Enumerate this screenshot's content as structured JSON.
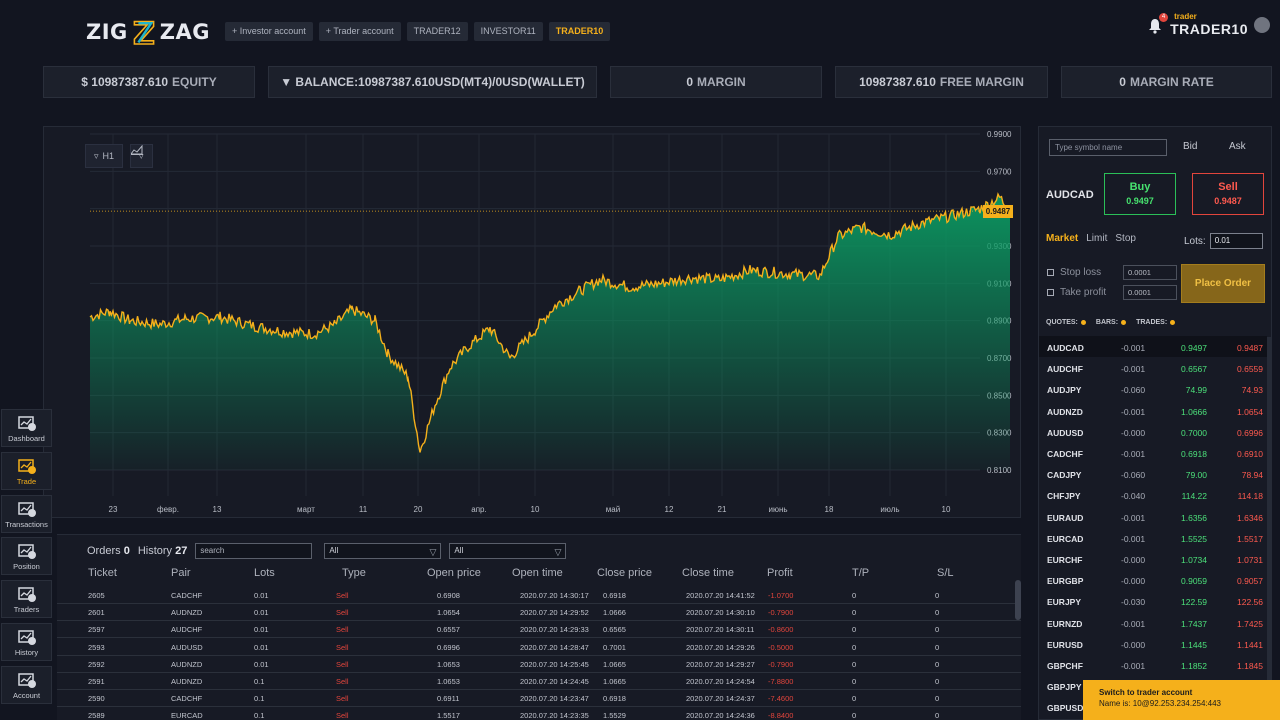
{
  "brand": {
    "left": "ZIG",
    "right": "ZAG"
  },
  "account_tabs": [
    {
      "label": "+ Investor account"
    },
    {
      "label": "+ Trader account"
    },
    {
      "label": "TRADER12"
    },
    {
      "label": "INVESTOR11"
    },
    {
      "label": "TRADER10",
      "active": true
    }
  ],
  "user": {
    "role": "trader",
    "name": "TRADER10",
    "notifications": "4"
  },
  "stats": {
    "equity_value": "$ 10987387.610",
    "equity_label": "EQUITY",
    "balance": "▼ BALANCE:10987387.610USD(MT4)/0USD(WALLET)",
    "margin_value": "0",
    "margin_label": "MARGIN",
    "free_value": "10987387.610",
    "free_label": "FREE MARGIN",
    "rate_value": "0",
    "rate_label": "MARGIN RATE"
  },
  "chart": {
    "timeframe": "H1",
    "current_price": "0.9487",
    "y_ticks": [
      "0.9900",
      "0.9700",
      "0.9500",
      "0.9300",
      "0.9100",
      "0.8900",
      "0.8700",
      "0.8500",
      "0.8300",
      "0.8100"
    ],
    "x_ticks": [
      "23",
      "февр.",
      "13",
      "март",
      "11",
      "20",
      "апр.",
      "10",
      "май",
      "12",
      "21",
      "июнь",
      "18",
      "июль",
      "10"
    ]
  },
  "history": {
    "orders_label": "Orders",
    "orders_count": "0",
    "history_label": "History",
    "history_count": "27",
    "search_placeholder": "search",
    "filter1": "All",
    "filter2": "All",
    "columns": [
      "Ticket",
      "Pair",
      "Lots",
      "Type",
      "Open price",
      "Open time",
      "Close price",
      "Close time",
      "Profit",
      "T/P",
      "S/L"
    ],
    "rows": [
      [
        "2605",
        "CADCHF",
        "0.01",
        "Sell",
        "0.6908",
        "2020.07.20 14:30:17",
        "0.6918",
        "2020.07.20 14:41:52",
        "-1.0700",
        "0",
        "0"
      ],
      [
        "2601",
        "AUDNZD",
        "0.01",
        "Sell",
        "1.0654",
        "2020.07.20 14:29:52",
        "1.0666",
        "2020.07.20 14:30:10",
        "-0.7900",
        "0",
        "0"
      ],
      [
        "2597",
        "AUDCHF",
        "0.01",
        "Sell",
        "0.6557",
        "2020.07.20 14:29:33",
        "0.6565",
        "2020.07.20 14:30:11",
        "-0.8600",
        "0",
        "0"
      ],
      [
        "2593",
        "AUDUSD",
        "0.01",
        "Sell",
        "0.6996",
        "2020.07.20 14:28:47",
        "0.7001",
        "2020.07.20 14:29:26",
        "-0.5000",
        "0",
        "0"
      ],
      [
        "2592",
        "AUDNZD",
        "0.01",
        "Sell",
        "1.0653",
        "2020.07.20 14:25:45",
        "1.0665",
        "2020.07.20 14:29:27",
        "-0.7900",
        "0",
        "0"
      ],
      [
        "2591",
        "AUDNZD",
        "0.1",
        "Sell",
        "1.0653",
        "2020.07.20 14:24:45",
        "1.0665",
        "2020.07.20 14:24:54",
        "-7.8800",
        "0",
        "0"
      ],
      [
        "2590",
        "CADCHF",
        "0.1",
        "Sell",
        "0.6911",
        "2020.07.20 14:23:47",
        "0.6918",
        "2020.07.20 14:24:37",
        "-7.4600",
        "0",
        "0"
      ],
      [
        "2589",
        "EURCAD",
        "0.1",
        "Sell",
        "1.5517",
        "2020.07.20 14:23:35",
        "1.5529",
        "2020.07.20 14:24:36",
        "-8.8400",
        "0",
        "0"
      ]
    ]
  },
  "sidebar": [
    {
      "label": "Dashboard",
      "icon": "dashboard-icon"
    },
    {
      "label": "Trade",
      "icon": "trade-icon",
      "active": true
    },
    {
      "label": "Transactions",
      "icon": "transactions-icon"
    },
    {
      "label": "Position",
      "icon": "position-icon"
    },
    {
      "label": "Traders",
      "icon": "traders-icon"
    },
    {
      "label": "History",
      "icon": "history-icon"
    },
    {
      "label": "Account",
      "icon": "account-icon"
    }
  ],
  "order_panel": {
    "symbol_placeholder": "Type symbol name",
    "bid_label": "Bid",
    "ask_label": "Ask",
    "symbol": "AUDCAD",
    "buy_label": "Buy",
    "buy_price": "0.9497",
    "sell_label": "Sell",
    "sell_price": "0.9487",
    "order_types": [
      "Market",
      "Limit",
      "Stop"
    ],
    "lots_label": "Lots:",
    "lots_value": "0.01",
    "stop_loss_label": "Stop loss",
    "stop_loss_value": "0.0001",
    "take_profit_label": "Take profit",
    "take_profit_value": "0.0001",
    "place_order": "Place Order",
    "tabs": [
      "QUOTES:",
      "BARS:",
      "TRADES:"
    ]
  },
  "quotes": [
    [
      "AUDCAD",
      "-0.001",
      "0.9497",
      "0.9487"
    ],
    [
      "AUDCHF",
      "-0.001",
      "0.6567",
      "0.6559"
    ],
    [
      "AUDJPY",
      "-0.060",
      "74.99",
      "74.93"
    ],
    [
      "AUDNZD",
      "-0.001",
      "1.0666",
      "1.0654"
    ],
    [
      "AUDUSD",
      "-0.000",
      "0.7000",
      "0.6996"
    ],
    [
      "CADCHF",
      "-0.001",
      "0.6918",
      "0.6910"
    ],
    [
      "CADJPY",
      "-0.060",
      "79.00",
      "78.94"
    ],
    [
      "CHFJPY",
      "-0.040",
      "114.22",
      "114.18"
    ],
    [
      "EURAUD",
      "-0.001",
      "1.6356",
      "1.6346"
    ],
    [
      "EURCAD",
      "-0.001",
      "1.5525",
      "1.5517"
    ],
    [
      "EURCHF",
      "-0.000",
      "1.0734",
      "1.0731"
    ],
    [
      "EURGBP",
      "-0.000",
      "0.9059",
      "0.9057"
    ],
    [
      "EURJPY",
      "-0.030",
      "122.59",
      "122.56"
    ],
    [
      "EURNZD",
      "-0.001",
      "1.7437",
      "1.7425"
    ],
    [
      "EURUSD",
      "-0.000",
      "1.1445",
      "1.1441"
    ],
    [
      "GBPCHF",
      "-0.001",
      "1.1852",
      "1.1845"
    ],
    [
      "GBPJPY",
      "",
      "",
      ""
    ],
    [
      "GBPUSD",
      "",
      "",
      ""
    ]
  ],
  "toast": {
    "title": "Switch to trader account",
    "body": "Name is: 10@92.253.234.254:443"
  },
  "colors": {
    "accent": "#f5b01b",
    "up": "#4ce07a",
    "down": "#ff5a4f",
    "area": "#0a8a5a"
  }
}
